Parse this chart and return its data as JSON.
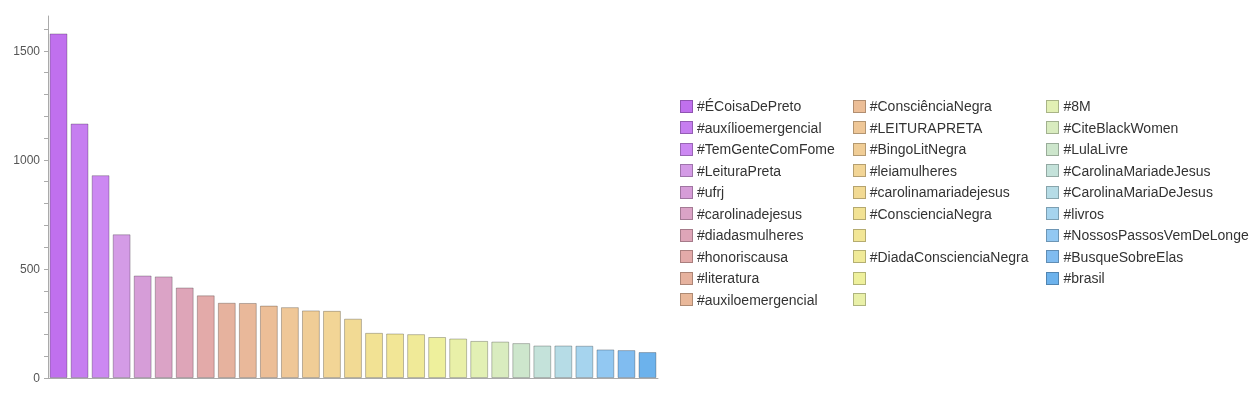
{
  "chart_data": {
    "type": "bar",
    "categories": [
      null,
      null,
      null,
      null,
      null,
      null,
      null,
      null,
      null,
      null,
      null,
      null,
      null,
      null,
      null,
      null,
      null,
      null,
      null,
      null,
      null,
      null,
      null,
      null,
      null,
      null,
      null,
      null,
      null
    ],
    "series": [
      {
        "name": "#ÉCoisaDePreto",
        "color": "#c070ee",
        "values": [
          1580,
          null,
          null,
          null,
          null,
          null,
          null,
          null,
          null,
          null,
          null,
          null,
          null,
          null,
          null,
          null,
          null,
          null,
          null,
          null,
          null,
          null,
          null,
          null,
          null,
          null,
          null,
          null,
          null
        ]
      },
      {
        "name": "#auxílioemergencial",
        "color": "#c67ef0",
        "values": [
          null,
          1167,
          null,
          null,
          null,
          null,
          null,
          null,
          null,
          null,
          null,
          null,
          null,
          null,
          null,
          null,
          null,
          null,
          null,
          null,
          null,
          null,
          null,
          null,
          null,
          null,
          null,
          null,
          null
        ]
      },
      {
        "name": "#TemGenteComFome",
        "color": "#cc88f2",
        "values": [
          null,
          null,
          930,
          null,
          null,
          null,
          null,
          null,
          null,
          null,
          null,
          null,
          null,
          null,
          null,
          null,
          null,
          null,
          null,
          null,
          null,
          null,
          null,
          null,
          null,
          null,
          null,
          null,
          null
        ]
      },
      {
        "name": "#LeituraPreta",
        "color": "#d49be6",
        "values": [
          null,
          null,
          null,
          659,
          null,
          null,
          null,
          null,
          null,
          null,
          null,
          null,
          null,
          null,
          null,
          null,
          null,
          null,
          null,
          null,
          null,
          null,
          null,
          null,
          null,
          null,
          null,
          null,
          null
        ]
      },
      {
        "name": "#ufrj",
        "color": "#d69dd8",
        "values": [
          null,
          null,
          null,
          null,
          470,
          null,
          null,
          null,
          null,
          null,
          null,
          null,
          null,
          null,
          null,
          null,
          null,
          null,
          null,
          null,
          null,
          null,
          null,
          null,
          null,
          null,
          null,
          null,
          null
        ]
      },
      {
        "name": "#carolinadejesus",
        "color": "#dba3c6",
        "values": [
          null,
          null,
          null,
          null,
          null,
          466,
          null,
          null,
          null,
          null,
          null,
          null,
          null,
          null,
          null,
          null,
          null,
          null,
          null,
          null,
          null,
          null,
          null,
          null,
          null,
          null,
          null,
          null,
          null
        ]
      },
      {
        "name": "#diadasmulheres",
        "color": "#dea5b8",
        "values": [
          null,
          null,
          null,
          null,
          null,
          null,
          415,
          null,
          null,
          null,
          null,
          null,
          null,
          null,
          null,
          null,
          null,
          null,
          null,
          null,
          null,
          null,
          null,
          null,
          null,
          null,
          null,
          null,
          null
        ]
      },
      {
        "name": "#honoriscausa",
        "color": "#e3aaa9",
        "values": [
          null,
          null,
          null,
          null,
          null,
          null,
          null,
          379,
          null,
          null,
          null,
          null,
          null,
          null,
          null,
          null,
          null,
          null,
          null,
          null,
          null,
          null,
          null,
          null,
          null,
          null,
          null,
          null,
          null
        ]
      },
      {
        "name": "#literatura",
        "color": "#e6b29e",
        "values": [
          null,
          null,
          null,
          null,
          null,
          null,
          null,
          null,
          345,
          null,
          null,
          null,
          null,
          null,
          null,
          null,
          null,
          null,
          null,
          null,
          null,
          null,
          null,
          null,
          null,
          null,
          null,
          null,
          null
        ]
      },
      {
        "name": "#auxiloemergencial",
        "color": "#e9b89a",
        "values": [
          null,
          null,
          null,
          null,
          null,
          null,
          null,
          null,
          null,
          344,
          null,
          null,
          null,
          null,
          null,
          null,
          null,
          null,
          null,
          null,
          null,
          null,
          null,
          null,
          null,
          null,
          null,
          null,
          null
        ]
      },
      {
        "name": "#ConsciênciaNegra",
        "color": "#ecbe97",
        "values": [
          null,
          null,
          null,
          null,
          null,
          null,
          null,
          null,
          null,
          null,
          332,
          null,
          null,
          null,
          null,
          null,
          null,
          null,
          null,
          null,
          null,
          null,
          null,
          null,
          null,
          null,
          null,
          null,
          null
        ]
      },
      {
        "name": "#LEITURAPRETA",
        "color": "#efc797",
        "values": [
          null,
          null,
          null,
          null,
          null,
          null,
          null,
          null,
          null,
          null,
          null,
          325,
          null,
          null,
          null,
          null,
          null,
          null,
          null,
          null,
          null,
          null,
          null,
          null,
          null,
          null,
          null,
          null,
          null
        ]
      },
      {
        "name": "#BingoLitNegra",
        "color": "#f0cd96",
        "values": [
          null,
          null,
          null,
          null,
          null,
          null,
          null,
          null,
          null,
          null,
          null,
          null,
          310,
          null,
          null,
          null,
          null,
          null,
          null,
          null,
          null,
          null,
          null,
          null,
          null,
          null,
          null,
          null,
          null
        ]
      },
      {
        "name": "#leiamulheres",
        "color": "#f2d596",
        "values": [
          null,
          null,
          null,
          null,
          null,
          null,
          null,
          null,
          null,
          null,
          null,
          null,
          null,
          308,
          null,
          null,
          null,
          null,
          null,
          null,
          null,
          null,
          null,
          null,
          null,
          null,
          null,
          null,
          null
        ]
      },
      {
        "name": "#carolinamariadejesus",
        "color": "#f2da94",
        "values": [
          null,
          null,
          null,
          null,
          null,
          null,
          null,
          null,
          null,
          null,
          null,
          null,
          null,
          null,
          272,
          null,
          null,
          null,
          null,
          null,
          null,
          null,
          null,
          null,
          null,
          null,
          null,
          null,
          null
        ]
      },
      {
        "name": "#ConscienciaNegra",
        "color": "#f2e294",
        "values": [
          null,
          null,
          null,
          null,
          null,
          null,
          null,
          null,
          null,
          null,
          null,
          null,
          null,
          null,
          null,
          207,
          null,
          null,
          null,
          null,
          null,
          null,
          null,
          null,
          null,
          null,
          null,
          null,
          null
        ]
      },
      {
        "color": "#f2e696",
        "values": [
          null,
          null,
          null,
          null,
          null,
          null,
          null,
          null,
          null,
          null,
          null,
          null,
          null,
          null,
          null,
          null,
          204,
          null,
          null,
          null,
          null,
          null,
          null,
          null,
          null,
          null,
          null,
          null,
          null
        ]
      },
      {
        "name": "#DiadaConscienciaNegra",
        "color": "#f0ea98",
        "values": [
          null,
          null,
          null,
          null,
          null,
          null,
          null,
          null,
          null,
          null,
          null,
          null,
          null,
          null,
          null,
          null,
          null,
          201,
          null,
          null,
          null,
          null,
          null,
          null,
          null,
          null,
          null,
          null,
          null
        ]
      },
      {
        "color": "#eef09c",
        "values": [
          null,
          null,
          null,
          null,
          null,
          null,
          null,
          null,
          null,
          null,
          null,
          null,
          null,
          null,
          null,
          null,
          null,
          null,
          188,
          null,
          null,
          null,
          null,
          null,
          null,
          null,
          null,
          null,
          null
        ]
      },
      {
        "color": "#e9f0a8",
        "values": [
          null,
          null,
          null,
          null,
          null,
          null,
          null,
          null,
          null,
          null,
          null,
          null,
          null,
          null,
          null,
          null,
          null,
          null,
          null,
          181,
          null,
          null,
          null,
          null,
          null,
          null,
          null,
          null,
          null
        ]
      },
      {
        "name": "#8M",
        "color": "#e2f0b4",
        "values": [
          null,
          null,
          null,
          null,
          null,
          null,
          null,
          null,
          null,
          null,
          null,
          null,
          null,
          null,
          null,
          null,
          null,
          null,
          null,
          null,
          170,
          null,
          null,
          null,
          null,
          null,
          null,
          null,
          null
        ]
      },
      {
        "name": "#CiteBlackWomen",
        "color": "#d9ecbf",
        "values": [
          null,
          null,
          null,
          null,
          null,
          null,
          null,
          null,
          null,
          null,
          null,
          null,
          null,
          null,
          null,
          null,
          null,
          null,
          null,
          null,
          null,
          167,
          null,
          null,
          null,
          null,
          null,
          null,
          null
        ]
      },
      {
        "name": "#LulaLivre",
        "color": "#cde6cc",
        "values": [
          null,
          null,
          null,
          null,
          null,
          null,
          null,
          null,
          null,
          null,
          null,
          null,
          null,
          null,
          null,
          null,
          null,
          null,
          null,
          null,
          null,
          null,
          160,
          null,
          null,
          null,
          null,
          null,
          null
        ]
      },
      {
        "name": "#CarolinaMariadeJesus",
        "color": "#c4e2da",
        "values": [
          null,
          null,
          null,
          null,
          null,
          null,
          null,
          null,
          null,
          null,
          null,
          null,
          null,
          null,
          null,
          null,
          null,
          null,
          null,
          null,
          null,
          null,
          null,
          149,
          null,
          null,
          null,
          null,
          null
        ]
      },
      {
        "name": "#CarolinaMariaDeJesus",
        "color": "#b6dce6",
        "values": [
          null,
          null,
          null,
          null,
          null,
          null,
          null,
          null,
          null,
          null,
          null,
          null,
          null,
          null,
          null,
          null,
          null,
          null,
          null,
          null,
          null,
          null,
          null,
          null,
          149,
          null,
          null,
          null,
          null
        ]
      },
      {
        "name": "#livros",
        "color": "#a6d4ee",
        "values": [
          null,
          null,
          null,
          null,
          null,
          null,
          null,
          null,
          null,
          null,
          null,
          null,
          null,
          null,
          null,
          null,
          null,
          null,
          null,
          null,
          null,
          null,
          null,
          null,
          null,
          148,
          null,
          null,
          null
        ]
      },
      {
        "name": "#NossosPassosVemDeLonge",
        "color": "#92c8f2",
        "values": [
          null,
          null,
          null,
          null,
          null,
          null,
          null,
          null,
          null,
          null,
          null,
          null,
          null,
          null,
          null,
          null,
          null,
          null,
          null,
          null,
          null,
          null,
          null,
          null,
          null,
          null,
          131,
          null,
          null
        ]
      },
      {
        "name": "#BusqueSobreElas",
        "color": "#80bcf0",
        "values": [
          null,
          null,
          null,
          null,
          null,
          null,
          null,
          null,
          null,
          null,
          null,
          null,
          null,
          null,
          null,
          null,
          null,
          null,
          null,
          null,
          null,
          null,
          null,
          null,
          null,
          null,
          null,
          128,
          null
        ]
      },
      {
        "name": "#brasil",
        "color": "#6cb2ec",
        "values": [
          null,
          null,
          null,
          null,
          null,
          null,
          null,
          null,
          null,
          null,
          null,
          null,
          null,
          null,
          null,
          null,
          null,
          null,
          null,
          null,
          null,
          null,
          null,
          null,
          null,
          null,
          null,
          null,
          119
        ]
      }
    ],
    "ylim": [
      0,
      1660
    ],
    "yticks": [
      0,
      {
        "value": 100,
        "label": null
      },
      {
        "value": 200,
        "label": null
      },
      {
        "value": 300,
        "label": null
      },
      {
        "value": 400,
        "label": null
      },
      500,
      {
        "value": 600,
        "label": null
      },
      {
        "value": 700,
        "label": null
      },
      {
        "value": 800,
        "label": null
      },
      {
        "value": 900,
        "label": null
      },
      1000,
      {
        "value": 1100,
        "label": null
      },
      {
        "value": 1200,
        "label": null
      },
      {
        "value": 1300,
        "label": null
      },
      {
        "value": 1400,
        "label": null
      },
      1500,
      {
        "value": 1600,
        "label": null
      }
    ],
    "tick_labels": "y",
    "legend": "right"
  }
}
